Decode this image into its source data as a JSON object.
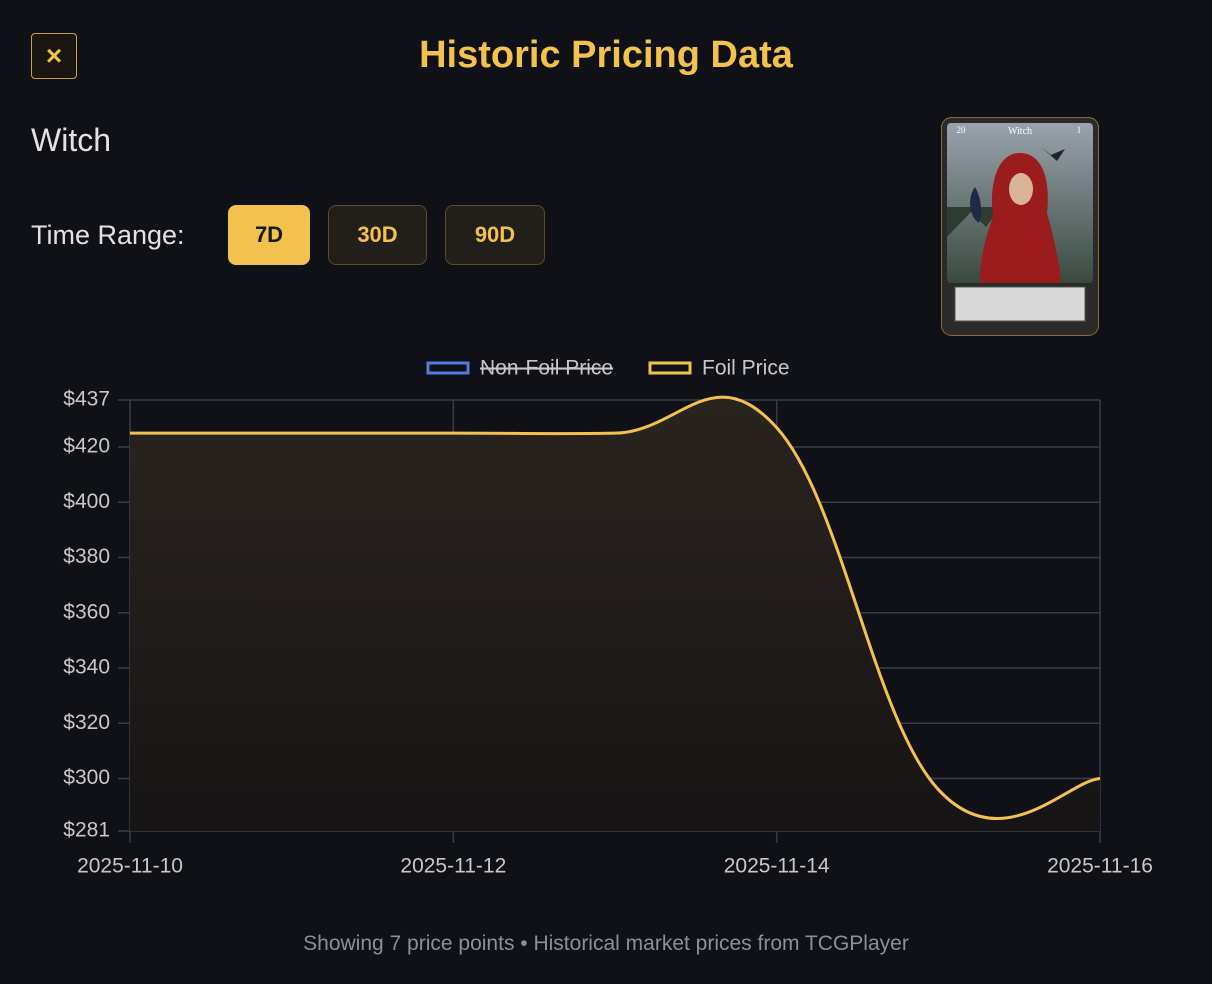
{
  "header": {
    "close": "×",
    "title": "Historic Pricing Data"
  },
  "card": {
    "name": "Witch",
    "cost": "20",
    "stat": "1"
  },
  "time_range": {
    "label": "Time Range:",
    "options": [
      "7D",
      "30D",
      "90D"
    ],
    "selected": "7D"
  },
  "chart_data": {
    "type": "line",
    "x": [
      "2025-11-10",
      "2025-11-11",
      "2025-11-12",
      "2025-11-13",
      "2025-11-14",
      "2025-11-15",
      "2025-11-16"
    ],
    "series": [
      {
        "name": "Non-Foil Price",
        "color": "#4f7fe0",
        "hidden": true,
        "values": [
          null,
          null,
          null,
          null,
          null,
          null,
          null
        ]
      },
      {
        "name": "Foil Price",
        "color": "#f2c14e",
        "hidden": false,
        "values": [
          425,
          425,
          425,
          425,
          427,
          296,
          300
        ]
      }
    ],
    "ylim": [
      281,
      437
    ],
    "yticks": [
      {
        "value": 281,
        "label": "$281"
      },
      {
        "value": 300,
        "label": "$300"
      },
      {
        "value": 320,
        "label": "$320"
      },
      {
        "value": 340,
        "label": "$340"
      },
      {
        "value": 360,
        "label": "$360"
      },
      {
        "value": 380,
        "label": "$380"
      },
      {
        "value": 400,
        "label": "$400"
      },
      {
        "value": 420,
        "label": "$420"
      },
      {
        "value": 437,
        "label": "$437"
      }
    ],
    "xticks": [
      "2025-11-10",
      "2025-11-12",
      "2025-11-14",
      "2025-11-16"
    ],
    "grid": true,
    "legend": "top"
  },
  "footer": "Showing 7 price points • Historical market prices from TCGPlayer"
}
